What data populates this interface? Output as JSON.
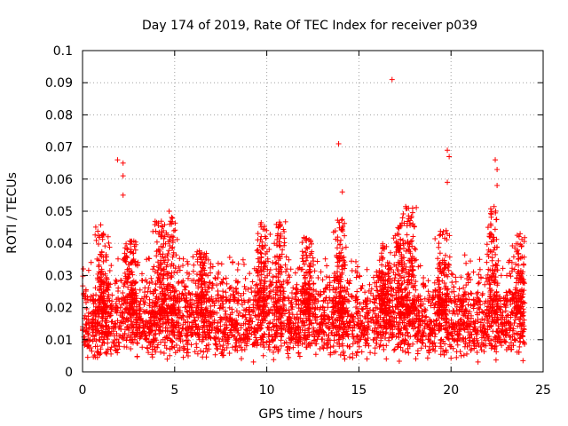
{
  "chart_data": {
    "type": "scatter",
    "title": "Day 174 of 2019, Rate Of TEC Index for receiver p039",
    "xlabel": "GPS time / hours",
    "ylabel": "ROTI / TECUs",
    "xlim": [
      0,
      25
    ],
    "ylim": [
      0,
      0.1
    ],
    "x_ticks": [
      0,
      5,
      10,
      15,
      20,
      25
    ],
    "y_ticks": [
      0,
      0.01,
      0.02,
      0.03,
      0.04,
      0.05,
      0.06,
      0.07,
      0.08,
      0.09,
      0.1
    ],
    "x_tick_labels": [
      "0",
      "5",
      "10",
      "15",
      "20",
      "25"
    ],
    "y_tick_labels": [
      "0",
      "0.01",
      "0.02",
      "0.03",
      "0.04",
      "0.05",
      "0.06",
      "0.07",
      "0.08",
      "0.09",
      "0.1"
    ],
    "grid": true,
    "marker": "+",
    "color": "#ff0000",
    "series": [
      {
        "name": "ROTI",
        "description": "Dense band of values between ~0.005 and ~0.03 TECU/min over 0-24 h, with isolated spikes",
        "outliers": [
          {
            "x": 1.9,
            "y": 0.066
          },
          {
            "x": 2.2,
            "y": 0.065
          },
          {
            "x": 2.2,
            "y": 0.061
          },
          {
            "x": 2.2,
            "y": 0.055
          },
          {
            "x": 4.7,
            "y": 0.05
          },
          {
            "x": 13.9,
            "y": 0.071
          },
          {
            "x": 14.1,
            "y": 0.056
          },
          {
            "x": 16.8,
            "y": 0.091
          },
          {
            "x": 19.8,
            "y": 0.069
          },
          {
            "x": 19.9,
            "y": 0.067
          },
          {
            "x": 19.8,
            "y": 0.059
          },
          {
            "x": 22.4,
            "y": 0.066
          },
          {
            "x": 22.5,
            "y": 0.063
          },
          {
            "x": 22.5,
            "y": 0.058
          }
        ],
        "clusters": [
          {
            "x": 1.1,
            "ymax": 0.046
          },
          {
            "x": 2.6,
            "ymax": 0.041
          },
          {
            "x": 4.2,
            "ymax": 0.047
          },
          {
            "x": 4.8,
            "ymax": 0.05
          },
          {
            "x": 6.5,
            "ymax": 0.038
          },
          {
            "x": 9.8,
            "ymax": 0.047
          },
          {
            "x": 10.7,
            "ymax": 0.047
          },
          {
            "x": 12.2,
            "ymax": 0.043
          },
          {
            "x": 14.0,
            "ymax": 0.048
          },
          {
            "x": 16.4,
            "ymax": 0.04
          },
          {
            "x": 17.2,
            "ymax": 0.048
          },
          {
            "x": 17.8,
            "ymax": 0.052
          },
          {
            "x": 19.5,
            "ymax": 0.044
          },
          {
            "x": 22.3,
            "ymax": 0.052
          },
          {
            "x": 23.7,
            "ymax": 0.043
          }
        ]
      }
    ]
  }
}
